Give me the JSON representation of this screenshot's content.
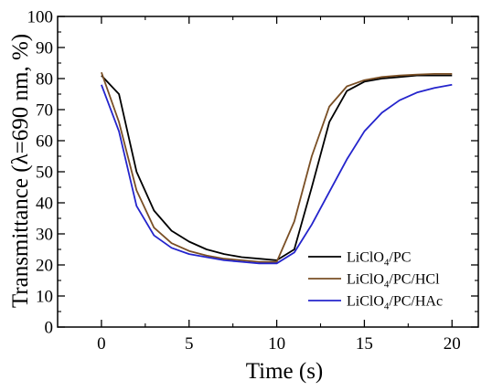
{
  "chart_data": {
    "type": "line",
    "xlabel": "Time (s)",
    "ylabel": "Transmittance (λ=690 nm, %)",
    "xlim": [
      -2.5,
      21.5
    ],
    "ylim": [
      0,
      100
    ],
    "xticks": [
      0,
      5,
      10,
      15,
      20
    ],
    "xticks_minor": [
      2.5,
      7.5,
      12.5,
      17.5
    ],
    "yticks": [
      0,
      10,
      20,
      30,
      40,
      50,
      60,
      70,
      80,
      90,
      100
    ],
    "yticks_minor": [
      5,
      15,
      25,
      35,
      45,
      55,
      65,
      75,
      85,
      95
    ],
    "grid": false,
    "legend_position": "bottom-right",
    "x": [
      0,
      1,
      2,
      3,
      4,
      5,
      6,
      7,
      8,
      9,
      10,
      11,
      12,
      13,
      14,
      15,
      16,
      17,
      18,
      19,
      20
    ],
    "series": [
      {
        "name": "LiClO4/PC",
        "name_base": "LiClO",
        "name_sub": "4",
        "name_rest": "/PC",
        "color": "#000000",
        "values": [
          81,
          75,
          50,
          37.5,
          31,
          27.5,
          25,
          23.5,
          22.5,
          22,
          21.5,
          25,
          45,
          66,
          76,
          79,
          80,
          80.5,
          81,
          81,
          81
        ]
      },
      {
        "name": "LiClO4/PC/HCl",
        "name_base": "LiClO",
        "name_sub": "4",
        "name_rest": "/PC/HCl",
        "color": "#7a4f25",
        "values": [
          82,
          66,
          44,
          32,
          27,
          24.5,
          23,
          22,
          21.5,
          21,
          21,
          34,
          55,
          71,
          77.5,
          79.5,
          80.5,
          81,
          81.3,
          81.5,
          81.5
        ]
      },
      {
        "name": "LiClO4/PC/HAc",
        "name_base": "LiClO",
        "name_sub": "4",
        "name_rest": "/PC/HAc",
        "color": "#2424cc",
        "values": [
          78,
          63,
          39,
          29.5,
          25.5,
          23.5,
          22.5,
          21.5,
          21,
          20.5,
          20.5,
          24,
          33,
          43.5,
          54,
          63,
          69,
          73,
          75.5,
          77,
          78
        ]
      }
    ]
  }
}
